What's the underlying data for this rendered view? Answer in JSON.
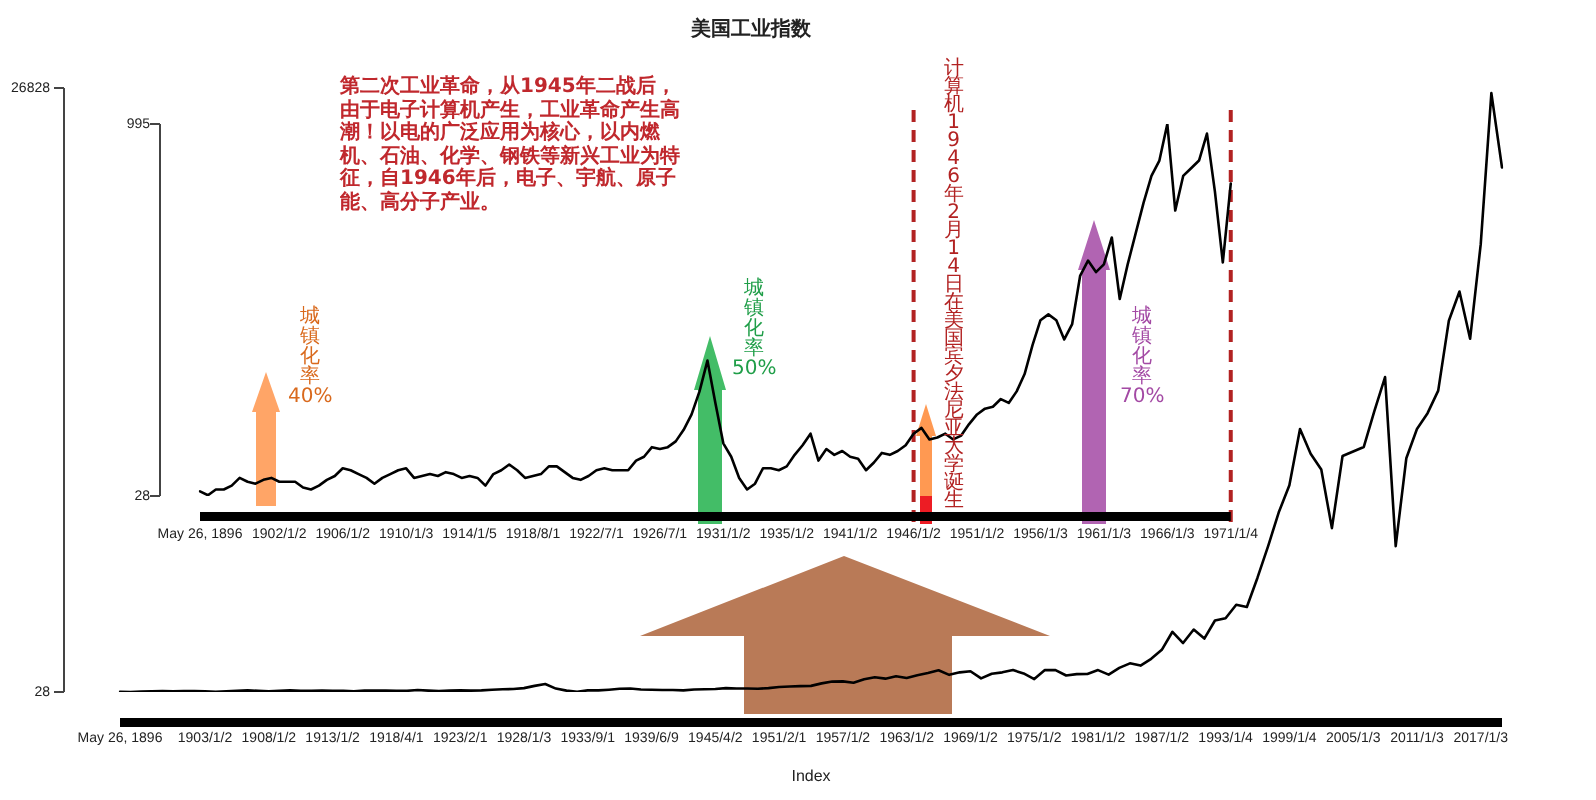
{
  "chart_data": [
    {
      "type": "line",
      "title": "美国工业指数",
      "xlabel": "Index",
      "categories": [
        "May 26, 1896",
        null,
        null,
        null,
        null,
        null,
        null,
        null,
        "1903/1/2",
        null,
        null,
        null,
        null,
        null,
        "1908/1/2",
        null,
        null,
        null,
        null,
        null,
        "1913/1/2",
        null,
        null,
        null,
        null,
        null,
        "1918/4/1",
        null,
        null,
        null,
        null,
        null,
        "1923/2/1",
        null,
        null,
        null,
        null,
        null,
        "1928/1/3",
        null,
        null,
        null,
        null,
        null,
        "1933/9/1",
        null,
        null,
        null,
        null,
        null,
        "1939/6/9",
        null,
        null,
        null,
        null,
        null,
        "1945/4/2",
        null,
        null,
        null,
        null,
        null,
        "1951/2/1",
        null,
        null,
        null,
        null,
        null,
        "1957/1/2",
        null,
        null,
        null,
        null,
        null,
        "1963/1/2",
        null,
        null,
        null,
        null,
        null,
        "1969/1/2",
        null,
        null,
        null,
        null,
        null,
        "1975/1/2",
        null,
        null,
        null,
        null,
        null,
        "1981/1/2",
        null,
        null,
        null,
        null,
        null,
        "1987/1/2",
        null,
        null,
        null,
        null,
        null,
        "1993/1/4",
        null,
        null,
        null,
        null,
        null,
        "1999/1/4",
        null,
        null,
        null,
        null,
        null,
        "2005/1/3",
        null,
        null,
        null,
        null,
        null,
        "2011/1/3",
        null,
        null,
        null,
        null,
        null,
        "2017/1/3",
        null,
        null
      ],
      "series": [
        {
          "color": "#000000",
          "values": [
            40,
            30,
            50,
            60,
            70,
            60,
            70,
            70,
            60,
            40,
            60,
            80,
            100,
            80,
            60,
            80,
            100,
            80,
            80,
            90,
            80,
            80,
            60,
            90,
            90,
            90,
            80,
            80,
            120,
            90,
            70,
            90,
            100,
            90,
            100,
            130,
            150,
            160,
            200,
            300,
            380,
            180,
            90,
            40,
            100,
            100,
            130,
            170,
            180,
            140,
            130,
            120,
            120,
            100,
            140,
            150,
            160,
            200,
            180,
            180,
            170,
            200,
            250,
            270,
            290,
            300,
            410,
            490,
            500,
            440,
            590,
            680,
            620,
            730,
            650,
            770,
            870,
            990,
            790,
            900,
            950,
            630,
            840,
            900,
            1000,
            850,
            600,
            1000,
            1000,
            760,
            820,
            830,
            1000,
            800,
            1100,
            1300,
            1200,
            1500,
            1900,
            2700,
            2200,
            2800,
            2400,
            3200,
            3300,
            3900,
            3800,
            5100,
            6500,
            8000,
            9200,
            11700,
            10600,
            9900,
            7300,
            10500,
            10700,
            10900,
            12500,
            14000,
            6500,
            10400,
            11700,
            12400,
            13400,
            16500,
            17800,
            15700,
            19900,
            26600,
            23300
          ]
        }
      ],
      "ylim": [
        28,
        26828
      ],
      "yticks": [
        28,
        26828
      ]
    },
    {
      "type": "line",
      "categories": [
        "May 26, 1896",
        null,
        null,
        null,
        null,
        null,
        null,
        null,
        null,
        null,
        "1902/1/2",
        null,
        null,
        null,
        null,
        null,
        null,
        null,
        "1906/1/2",
        null,
        null,
        null,
        null,
        null,
        null,
        null,
        "1910/1/3",
        null,
        null,
        null,
        null,
        null,
        null,
        null,
        "1914/1/5",
        null,
        null,
        null,
        null,
        null,
        null,
        null,
        "1918/8/1",
        null,
        null,
        null,
        null,
        null,
        null,
        null,
        "1922/7/1",
        null,
        null,
        null,
        null,
        null,
        null,
        null,
        "1926/7/1",
        null,
        null,
        null,
        null,
        null,
        null,
        null,
        "1931/1/2",
        null,
        null,
        null,
        null,
        null,
        null,
        null,
        "1935/1/2",
        null,
        null,
        null,
        null,
        null,
        null,
        null,
        "1941/1/2",
        null,
        null,
        null,
        null,
        null,
        null,
        null,
        "1946/1/2",
        null,
        null,
        null,
        null,
        null,
        null,
        null,
        "1951/1/2",
        null,
        null,
        null,
        null,
        null,
        null,
        null,
        "1956/1/3",
        null,
        null,
        null,
        null,
        null,
        null,
        null,
        "1961/1/3",
        null,
        null,
        null,
        null,
        null,
        null,
        null,
        "1966/1/3",
        null,
        null,
        null,
        null,
        null,
        null,
        null,
        "1971/1/4"
      ],
      "series": [
        {
          "color": "#000000",
          "values": [
            40,
            30,
            45,
            45,
            55,
            75,
            65,
            60,
            70,
            75,
            65,
            65,
            65,
            50,
            45,
            55,
            70,
            80,
            100,
            95,
            85,
            75,
            60,
            75,
            85,
            95,
            100,
            75,
            80,
            85,
            80,
            90,
            85,
            75,
            80,
            75,
            55,
            85,
            95,
            110,
            95,
            75,
            80,
            85,
            105,
            105,
            90,
            75,
            70,
            80,
            95,
            100,
            95,
            95,
            95,
            120,
            130,
            155,
            150,
            155,
            170,
            200,
            240,
            300,
            380,
            270,
            165,
            130,
            75,
            45,
            60,
            100,
            100,
            95,
            105,
            135,
            160,
            190,
            120,
            150,
            135,
            145,
            130,
            125,
            95,
            115,
            140,
            135,
            145,
            160,
            190,
            205,
            175,
            180,
            190,
            175,
            185,
            215,
            240,
            255,
            260,
            280,
            270,
            300,
            345,
            420,
            485,
            500,
            485,
            435,
            475,
            600,
            640,
            610,
            630,
            700,
            540,
            630,
            710,
            790,
            860,
            900,
            995,
            770,
            860,
            880,
            900,
            970,
            820,
            635,
            840
          ]
        }
      ],
      "ylim": [
        28,
        995
      ],
      "yticks": [
        28,
        995
      ],
      "ref_lines": [
        {
          "axis": "x",
          "value": "1946/1/2",
          "color": "#b22222",
          "line_style": "dashed",
          "label": "计算机1946年2月14日在美国宾夕法尼亚大学诞生"
        },
        {
          "axis": "x",
          "value": "1971/1/4",
          "color": "#b22222",
          "line_style": "dashed"
        }
      ],
      "annotations": [
        "第二次工业革命，从1945年二战后，由于电子计算机产生，工业革命产生高潮！以电的广泛应用为核心，以内燃机、石油、化学、钢铁等新兴工业为特征，自1946年后，电子、宇航、原子能、高分子产业。",
        "城镇化率40%",
        "城镇化率50%",
        "城镇化率70%"
      ]
    }
  ]
}
